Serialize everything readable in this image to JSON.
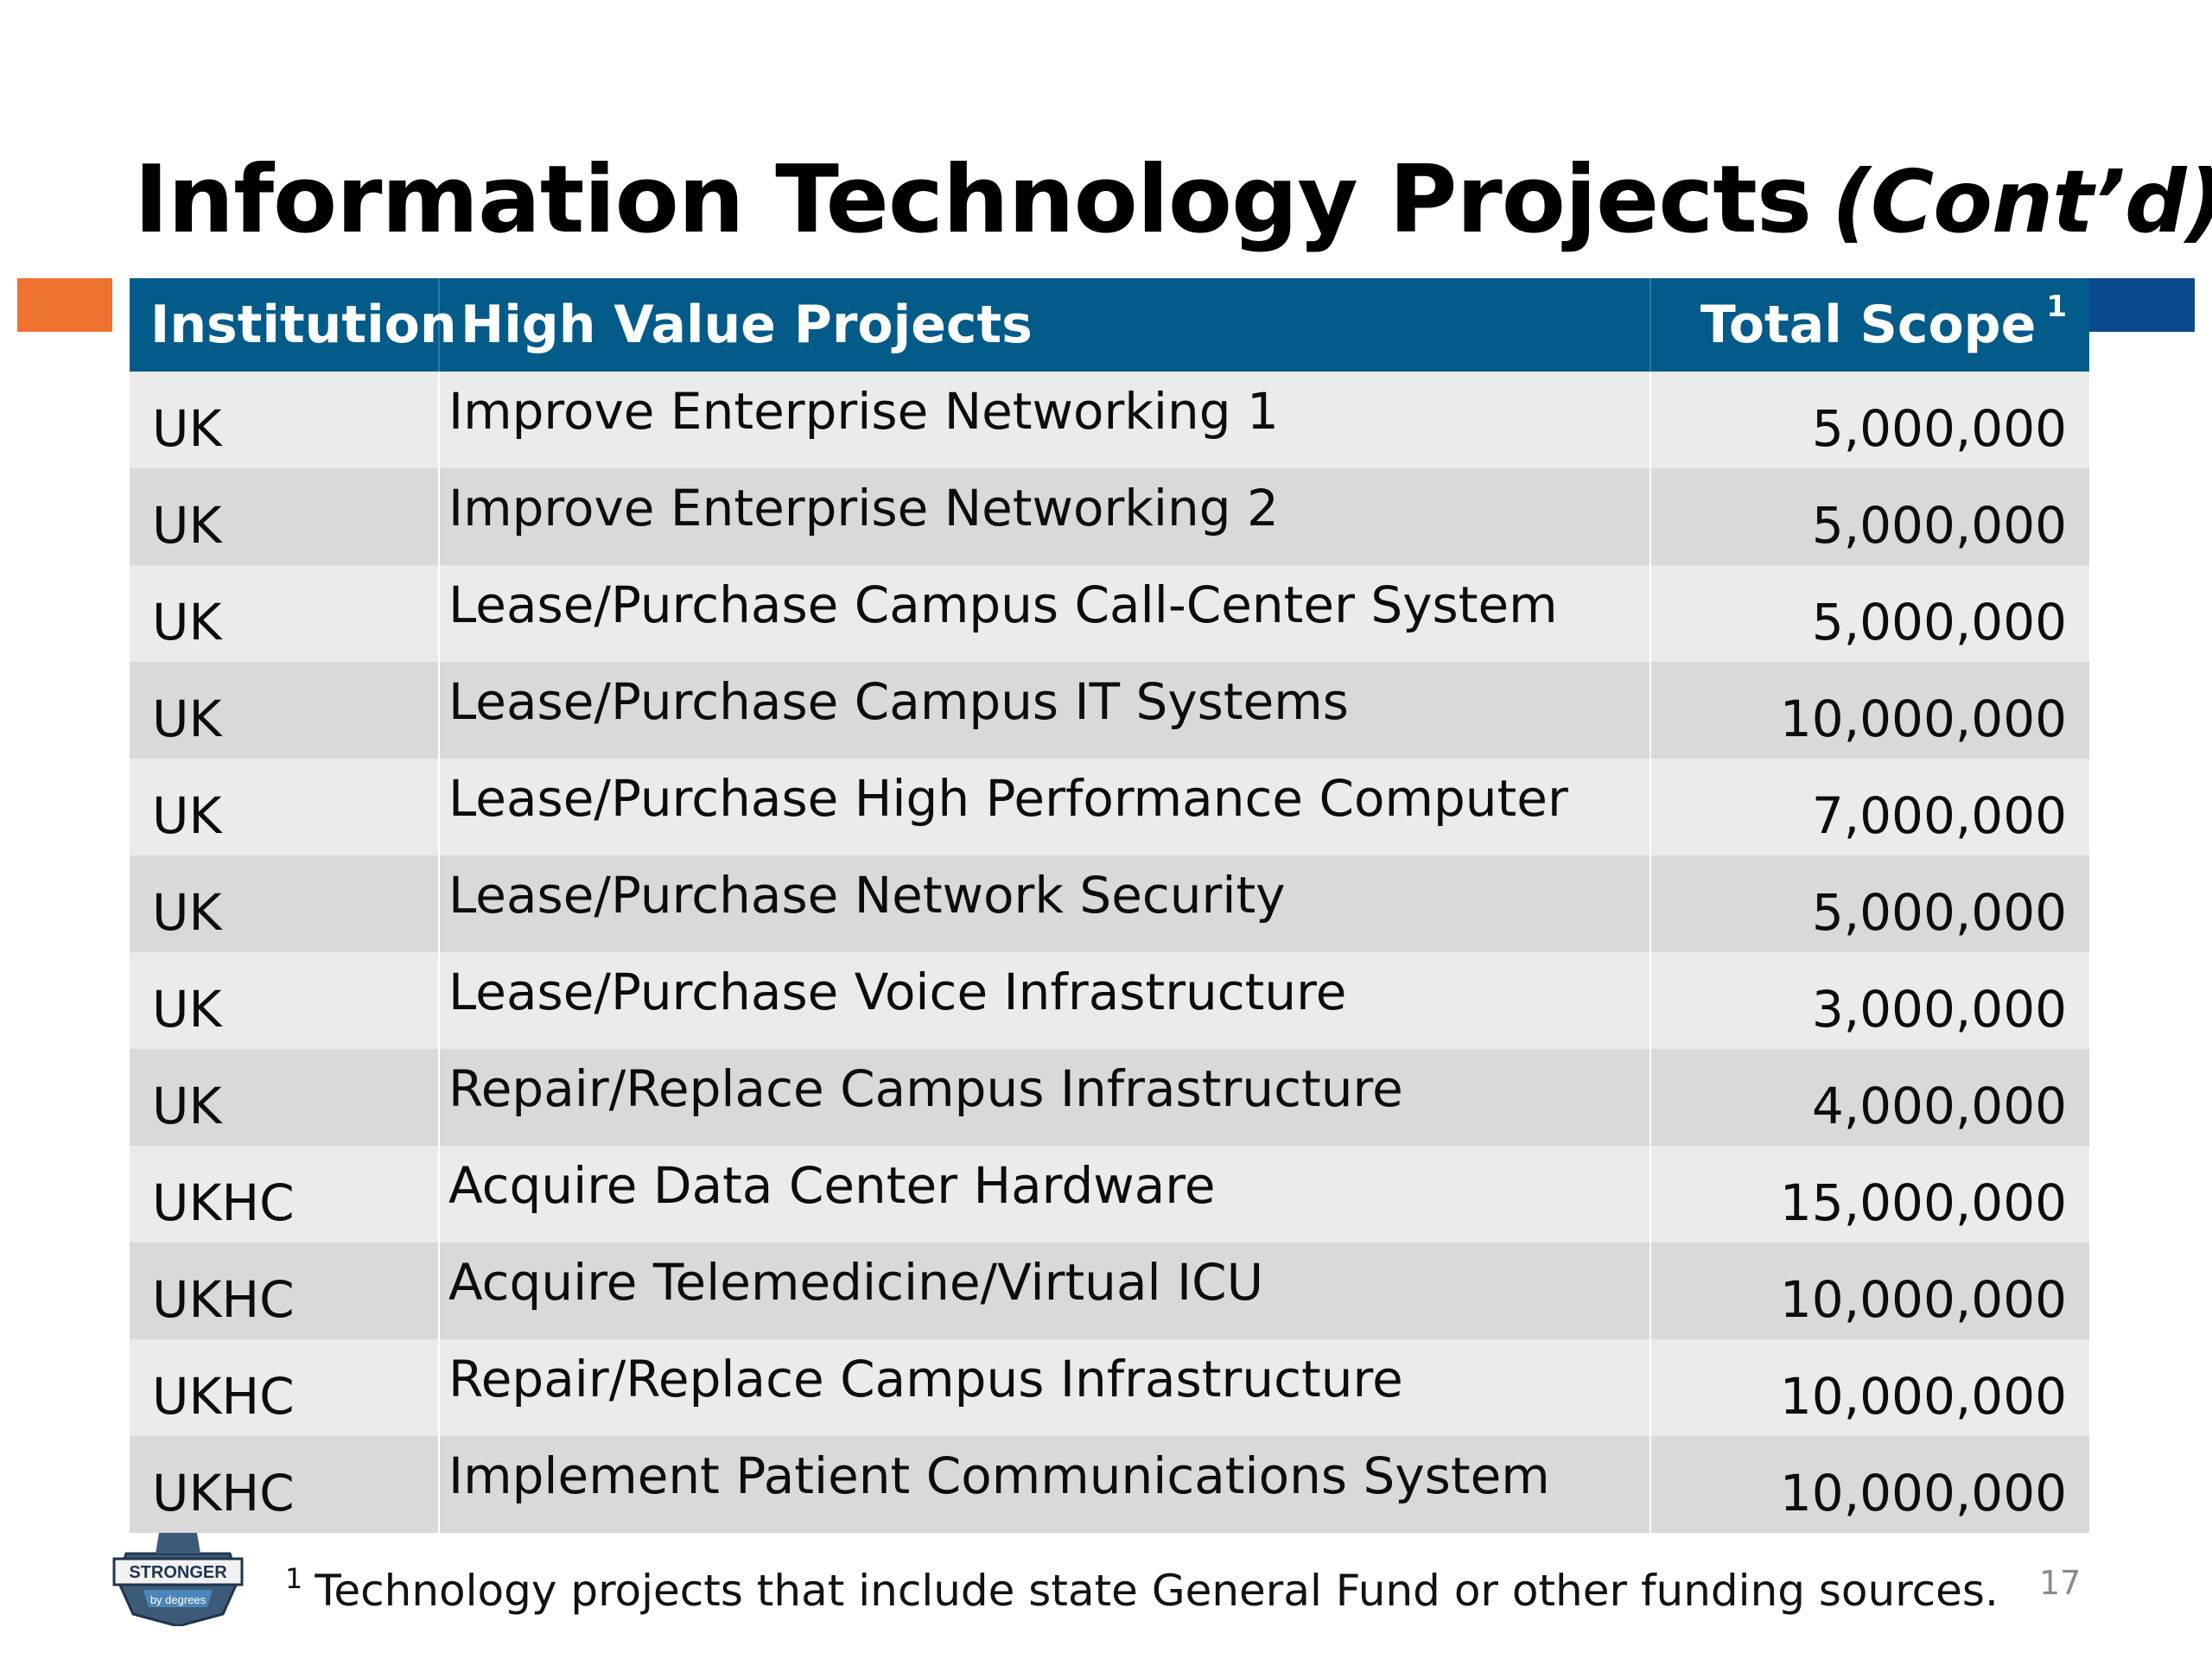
{
  "slide": {
    "title": "Information Technology Projects",
    "title_suffix": "(Cont’d)",
    "page_number": "17",
    "accent_colors": {
      "orange": "#ee7330",
      "blue": "#0a4a8c",
      "header": "#035b8a"
    }
  },
  "table": {
    "headers": {
      "institution": "Institution",
      "projects": "High Value Projects",
      "total": "Total Scope",
      "total_footnote_marker": "1"
    },
    "rows": [
      {
        "institution": "UK",
        "project": "Improve Enterprise Networking 1",
        "total": "5,000,000"
      },
      {
        "institution": "UK",
        "project": "Improve Enterprise Networking 2",
        "total": "5,000,000"
      },
      {
        "institution": "UK",
        "project": "Lease/Purchase Campus Call-Center System",
        "total": "5,000,000"
      },
      {
        "institution": "UK",
        "project": "Lease/Purchase Campus IT Systems",
        "total": "10,000,000"
      },
      {
        "institution": "UK",
        "project": "Lease/Purchase High Performance Computer",
        "total": "7,000,000"
      },
      {
        "institution": "UK",
        "project": "Lease/Purchase Network Security",
        "total": "5,000,000"
      },
      {
        "institution": "UK",
        "project": "Lease/Purchase Voice Infrastructure",
        "total": "3,000,000"
      },
      {
        "institution": "UK",
        "project": "Repair/Replace Campus Infrastructure",
        "total": "4,000,000"
      },
      {
        "institution": "UKHC",
        "project": "Acquire Data Center Hardware",
        "total": "15,000,000"
      },
      {
        "institution": "UKHC",
        "project": "Acquire Telemedicine/Virtual ICU",
        "total": "10,000,000"
      },
      {
        "institution": "UKHC",
        "project": "Repair/Replace Campus Infrastructure",
        "total": "10,000,000"
      },
      {
        "institution": "UKHC",
        "project": "Implement Patient Communications System",
        "total": "10,000,000"
      }
    ]
  },
  "footnote": {
    "marker": "1",
    "text": "Technology projects that include state General Fund or other funding sources."
  },
  "logo": {
    "icon": "shield-badge-icon",
    "primary_text": "STRONGER",
    "secondary_text": "by degrees"
  }
}
